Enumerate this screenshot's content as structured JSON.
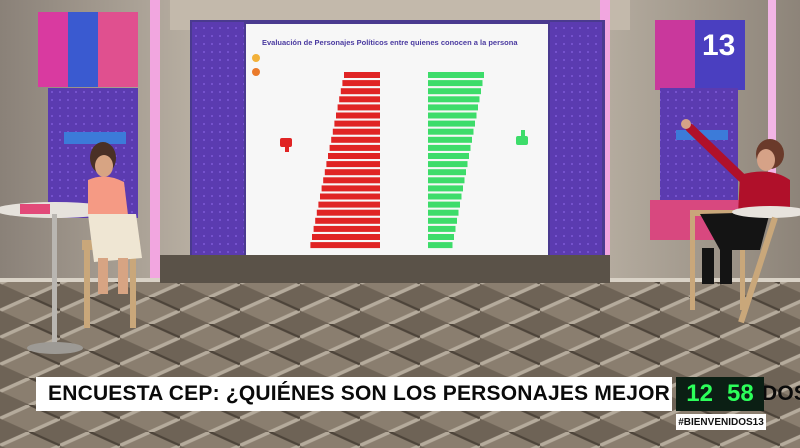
{
  "broadcast": {
    "headline": "ENCUESTA CEP: ¿QUIÉNES SON LOS PERSONAJES MEJOR EVALUADOS?",
    "clock_hours": "12",
    "clock_minutes": "58",
    "hashtag": "#BIENVENIDOS13",
    "channel_logo": "13"
  },
  "screen_chart": {
    "title": "Evaluación de Personajes Políticos entre quienes conocen a la persona"
  },
  "colors": {
    "bar_negative": "#e02424",
    "bar_positive": "#3ddc6a",
    "title": "#4a3aa0",
    "graphic_green": "#2cff5a"
  }
}
